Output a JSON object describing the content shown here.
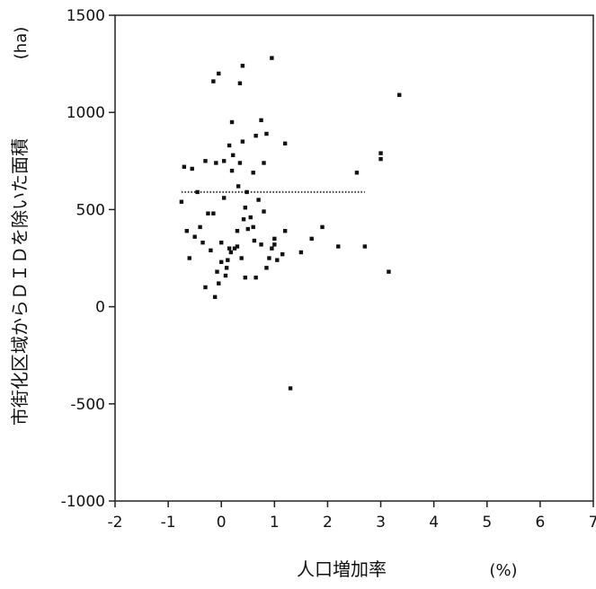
{
  "chart_data": {
    "type": "scatter",
    "title": "",
    "xlabel": "人口増加率",
    "xunit": "(%)",
    "ylabel": "市街化区域からＤＩＤを除いた面積",
    "yunit": "(ha)",
    "xlim": [
      -2,
      7
    ],
    "ylim": [
      -1000,
      1500
    ],
    "xticks": [
      "-2",
      "-1",
      "0",
      "1",
      "2",
      "3",
      "4",
      "5",
      "6",
      "7"
    ],
    "yticks": [
      "1500",
      "1000",
      "500",
      "0",
      "-500",
      "-1000"
    ],
    "grid": false,
    "legend": "none",
    "marker_color": "#111111",
    "mean_line": {
      "y": 590,
      "x_from": -0.75,
      "x_to": 2.7,
      "style": "dotted"
    },
    "series": [
      {
        "points": [
          [
            -0.75,
            540
          ],
          [
            -0.7,
            720
          ],
          [
            -0.65,
            390
          ],
          [
            -0.6,
            250
          ],
          [
            -0.55,
            710
          ],
          [
            -0.5,
            360
          ],
          [
            -0.45,
            590
          ],
          [
            -0.4,
            410
          ],
          [
            -0.35,
            330
          ],
          [
            -0.3,
            750
          ],
          [
            -0.3,
            100
          ],
          [
            -0.25,
            480
          ],
          [
            -0.2,
            290
          ],
          [
            -0.15,
            480
          ],
          [
            -0.15,
            1160
          ],
          [
            -0.12,
            50
          ],
          [
            -0.1,
            740
          ],
          [
            -0.08,
            180
          ],
          [
            -0.05,
            1200
          ],
          [
            -0.05,
            120
          ],
          [
            0,
            230
          ],
          [
            0,
            330
          ],
          [
            0.05,
            560
          ],
          [
            0.05,
            750
          ],
          [
            0.08,
            160
          ],
          [
            0.1,
            200
          ],
          [
            0.12,
            240
          ],
          [
            0.15,
            300
          ],
          [
            0.15,
            830
          ],
          [
            0.18,
            280
          ],
          [
            0.2,
            700
          ],
          [
            0.2,
            950
          ],
          [
            0.22,
            780
          ],
          [
            0.25,
            300
          ],
          [
            0.3,
            310
          ],
          [
            0.3,
            390
          ],
          [
            0.32,
            620
          ],
          [
            0.35,
            1150
          ],
          [
            0.35,
            740
          ],
          [
            0.38,
            250
          ],
          [
            0.4,
            1240
          ],
          [
            0.4,
            850
          ],
          [
            0.42,
            450
          ],
          [
            0.45,
            510
          ],
          [
            0.45,
            150
          ],
          [
            0.48,
            590
          ],
          [
            0.5,
            400
          ],
          [
            0.55,
            460
          ],
          [
            0.6,
            410
          ],
          [
            0.6,
            690
          ],
          [
            0.62,
            340
          ],
          [
            0.65,
            150
          ],
          [
            0.65,
            880
          ],
          [
            0.7,
            550
          ],
          [
            0.75,
            320
          ],
          [
            0.75,
            960
          ],
          [
            0.8,
            740
          ],
          [
            0.8,
            490
          ],
          [
            0.85,
            200
          ],
          [
            0.85,
            890
          ],
          [
            0.9,
            250
          ],
          [
            0.95,
            300
          ],
          [
            0.95,
            1280
          ],
          [
            1.0,
            350
          ],
          [
            1.0,
            320
          ],
          [
            1.05,
            240
          ],
          [
            1.15,
            270
          ],
          [
            1.2,
            840
          ],
          [
            1.2,
            390
          ],
          [
            1.3,
            -420
          ],
          [
            1.5,
            280
          ],
          [
            1.7,
            350
          ],
          [
            1.9,
            410
          ],
          [
            2.2,
            310
          ],
          [
            2.55,
            690
          ],
          [
            2.7,
            310
          ],
          [
            3.0,
            760
          ],
          [
            3.0,
            790
          ],
          [
            3.15,
            180
          ],
          [
            3.35,
            1090
          ]
        ]
      }
    ]
  }
}
